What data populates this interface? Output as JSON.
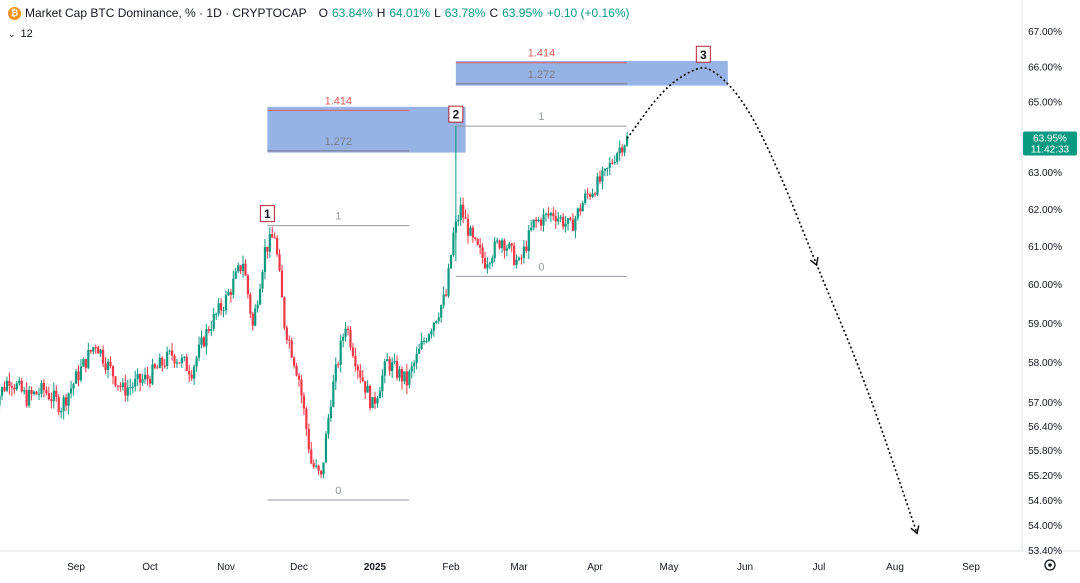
{
  "header": {
    "logo_icon": "bitcoin-icon",
    "title": "Market Cap BTC Dominance, % · 1D · CRYPTOCAP",
    "open_label": "O",
    "open": "63.84%",
    "high_label": "H",
    "high": "64.01%",
    "low_label": "L",
    "low": "63.78%",
    "close_label": "C",
    "close": "63.95%",
    "change": "+0.10 (+0.16%)",
    "indicator_count": "12",
    "up_color": "#089981"
  },
  "price_tag": {
    "value": "63.95%",
    "countdown": "11:42:33",
    "color": "#089981"
  },
  "settings_icon": "gear-icon",
  "chart_data": {
    "type": "candlestick",
    "title": "Market Cap BTC Dominance, % · 1D · CRYPTOCAP",
    "y_axis": {
      "position": "right",
      "ticks": [
        "67.00%",
        "66.00%",
        "65.00%",
        "64.00%",
        "63.00%",
        "62.00%",
        "61.00%",
        "60.00%",
        "59.00%",
        "58.00%",
        "57.00%",
        "56.40%",
        "55.80%",
        "55.20%",
        "54.60%",
        "54.00%",
        "53.40%"
      ],
      "tick_values": [
        67.0,
        66.0,
        65.0,
        64.0,
        63.0,
        62.0,
        61.0,
        60.0,
        59.0,
        58.0,
        57.0,
        56.4,
        55.8,
        55.2,
        54.6,
        54.0,
        53.4
      ],
      "range": [
        53.4,
        67.3
      ]
    },
    "x_axis": {
      "ticks": [
        "Sep",
        "Oct",
        "Nov",
        "Dec",
        "2025",
        "Feb",
        "Mar",
        "Apr",
        "May",
        "Jun",
        "Jul",
        "Aug",
        "Sep"
      ],
      "tick_dates": [
        "2024-09-01",
        "2024-10-01",
        "2024-11-01",
        "2024-12-01",
        "2025-01-01",
        "2025-02-01",
        "2025-03-01",
        "2025-04-01",
        "2025-05-01",
        "2025-06-01",
        "2025-07-01",
        "2025-08-01",
        "2025-09-01"
      ],
      "bold_tick": "2025"
    },
    "colors": {
      "up": "#089981",
      "down": "#f23645",
      "zone": "#6f95dc",
      "projection": "#000000"
    },
    "price_path": [
      [
        "2024-07-29",
        56.9
      ],
      [
        "2024-08-05",
        57.6
      ],
      [
        "2024-08-12",
        57.1
      ],
      [
        "2024-08-19",
        57.3
      ],
      [
        "2024-08-26",
        56.9
      ],
      [
        "2024-09-02",
        57.7
      ],
      [
        "2024-09-09",
        58.5
      ],
      [
        "2024-09-14",
        57.9
      ],
      [
        "2024-09-20",
        57.3
      ],
      [
        "2024-09-30",
        57.6
      ],
      [
        "2024-10-10",
        58.2
      ],
      [
        "2024-10-18",
        57.8
      ],
      [
        "2024-10-25",
        58.9
      ],
      [
        "2024-11-01",
        59.6
      ],
      [
        "2024-11-08",
        60.6
      ],
      [
        "2024-11-12",
        58.9
      ],
      [
        "2024-11-17",
        60.9
      ],
      [
        "2024-11-21",
        61.3
      ],
      [
        "2024-11-25",
        59.0
      ],
      [
        "2024-12-01",
        57.6
      ],
      [
        "2024-12-06",
        55.5
      ],
      [
        "2024-12-10",
        55.1
      ],
      [
        "2024-12-14",
        57.1
      ],
      [
        "2024-12-20",
        59.0
      ],
      [
        "2024-12-25",
        57.9
      ],
      [
        "2024-12-31",
        56.9
      ],
      [
        "2025-01-06",
        58.0
      ],
      [
        "2025-01-14",
        57.5
      ],
      [
        "2025-01-22",
        58.7
      ],
      [
        "2025-01-30",
        59.7
      ],
      [
        "2025-02-02",
        61.3
      ],
      [
        "2025-02-05",
        62.0
      ],
      [
        "2025-02-10",
        61.1
      ],
      [
        "2025-02-15",
        60.6
      ],
      [
        "2025-02-22",
        61.2
      ],
      [
        "2025-03-01",
        60.5
      ],
      [
        "2025-03-07",
        61.6
      ],
      [
        "2025-03-15",
        61.9
      ],
      [
        "2025-03-22",
        61.5
      ],
      [
        "2025-03-28",
        62.3
      ],
      [
        "2025-04-05",
        62.9
      ],
      [
        "2025-04-10",
        63.6
      ],
      [
        "2025-04-14",
        63.95
      ]
    ],
    "fib_levels": [
      {
        "label": "1",
        "value": 61.55,
        "from": "2024-11-18",
        "to": "2025-01-15",
        "color": "#9598a1"
      },
      {
        "label": "0",
        "value": 54.6,
        "from": "2024-11-18",
        "to": "2025-01-15",
        "color": "#9598a1"
      },
      {
        "label": "1.414",
        "value": 64.75,
        "from": "2024-11-18",
        "to": "2025-01-15",
        "color": "#e05c5c"
      },
      {
        "label": "1.272",
        "value": 63.6,
        "from": "2024-11-18",
        "to": "2025-01-15",
        "color": "#787b86"
      },
      {
        "label": "1",
        "value": 64.3,
        "from": "2025-02-03",
        "to": "2025-04-14",
        "color": "#9598a1"
      },
      {
        "label": "0",
        "value": 60.2,
        "from": "2025-02-03",
        "to": "2025-04-14",
        "color": "#9598a1"
      },
      {
        "label": "1.414",
        "value": 66.1,
        "from": "2025-02-03",
        "to": "2025-04-14",
        "color": "#e05c5c"
      },
      {
        "label": "1.272",
        "value": 65.5,
        "from": "2025-02-03",
        "to": "2025-04-14",
        "color": "#787b86"
      }
    ],
    "zones": [
      {
        "from": "2024-11-18",
        "to": "2025-02-07",
        "top": 64.85,
        "bottom": 63.55
      },
      {
        "from": "2025-02-03",
        "to": "2025-05-25",
        "top": 66.15,
        "bottom": 65.45
      }
    ],
    "wave_labels": [
      {
        "label": "1",
        "date": "2024-11-18",
        "value": 61.55
      },
      {
        "label": "2",
        "date": "2025-02-03",
        "value": 64.3
      },
      {
        "label": "3",
        "date": "2025-05-15",
        "value": 66.0
      }
    ],
    "projection": [
      [
        "2025-04-14",
        63.95
      ],
      [
        "2025-04-28",
        65.3
      ],
      [
        "2025-05-10",
        65.9
      ],
      [
        "2025-05-18",
        66.0
      ],
      [
        "2025-06-01",
        65.0
      ],
      [
        "2025-06-15",
        63.0
      ],
      [
        "2025-06-30",
        60.5
      ],
      [
        "2025-07-20",
        57.5
      ],
      [
        "2025-08-10",
        53.8
      ]
    ],
    "arrow_at": [
      "2025-06-30",
      60.5
    ]
  }
}
